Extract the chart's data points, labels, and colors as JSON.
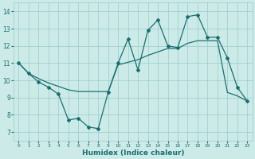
{
  "xlabel": "Humidex (Indice chaleur)",
  "background_color": "#cceae7",
  "grid_color": "#99cccc",
  "line_color": "#1a7070",
  "xlim": [
    -0.5,
    23.5
  ],
  "ylim": [
    6.5,
    14.5
  ],
  "yticks": [
    7,
    8,
    9,
    10,
    11,
    12,
    13,
    14
  ],
  "xticks": [
    0,
    1,
    2,
    3,
    4,
    5,
    6,
    7,
    8,
    9,
    10,
    11,
    12,
    13,
    14,
    15,
    16,
    17,
    18,
    19,
    20,
    21,
    22,
    23
  ],
  "line1_x": [
    0,
    1,
    2,
    3,
    4,
    5,
    6,
    7,
    8,
    9,
    10,
    11,
    12,
    13,
    14,
    15,
    16,
    17,
    18,
    19,
    20,
    21,
    22,
    23
  ],
  "line1_y": [
    11.0,
    10.4,
    9.9,
    9.6,
    9.2,
    7.7,
    7.8,
    7.3,
    7.2,
    9.3,
    11.0,
    12.4,
    10.6,
    12.9,
    13.5,
    12.0,
    11.9,
    13.7,
    13.8,
    12.5,
    12.5,
    11.3,
    9.6,
    8.8
  ],
  "line2_x": [
    0,
    1,
    2,
    3,
    4,
    5,
    6,
    7,
    8,
    9,
    10,
    11,
    12,
    13,
    14,
    15,
    16,
    17,
    18,
    19,
    20,
    21,
    22,
    23
  ],
  "line2_y": [
    11.0,
    10.4,
    10.1,
    9.85,
    9.65,
    9.45,
    9.35,
    9.35,
    9.35,
    9.35,
    10.9,
    11.05,
    11.2,
    11.45,
    11.65,
    11.85,
    11.85,
    12.15,
    12.3,
    12.3,
    12.3,
    9.3,
    9.1,
    8.8
  ]
}
